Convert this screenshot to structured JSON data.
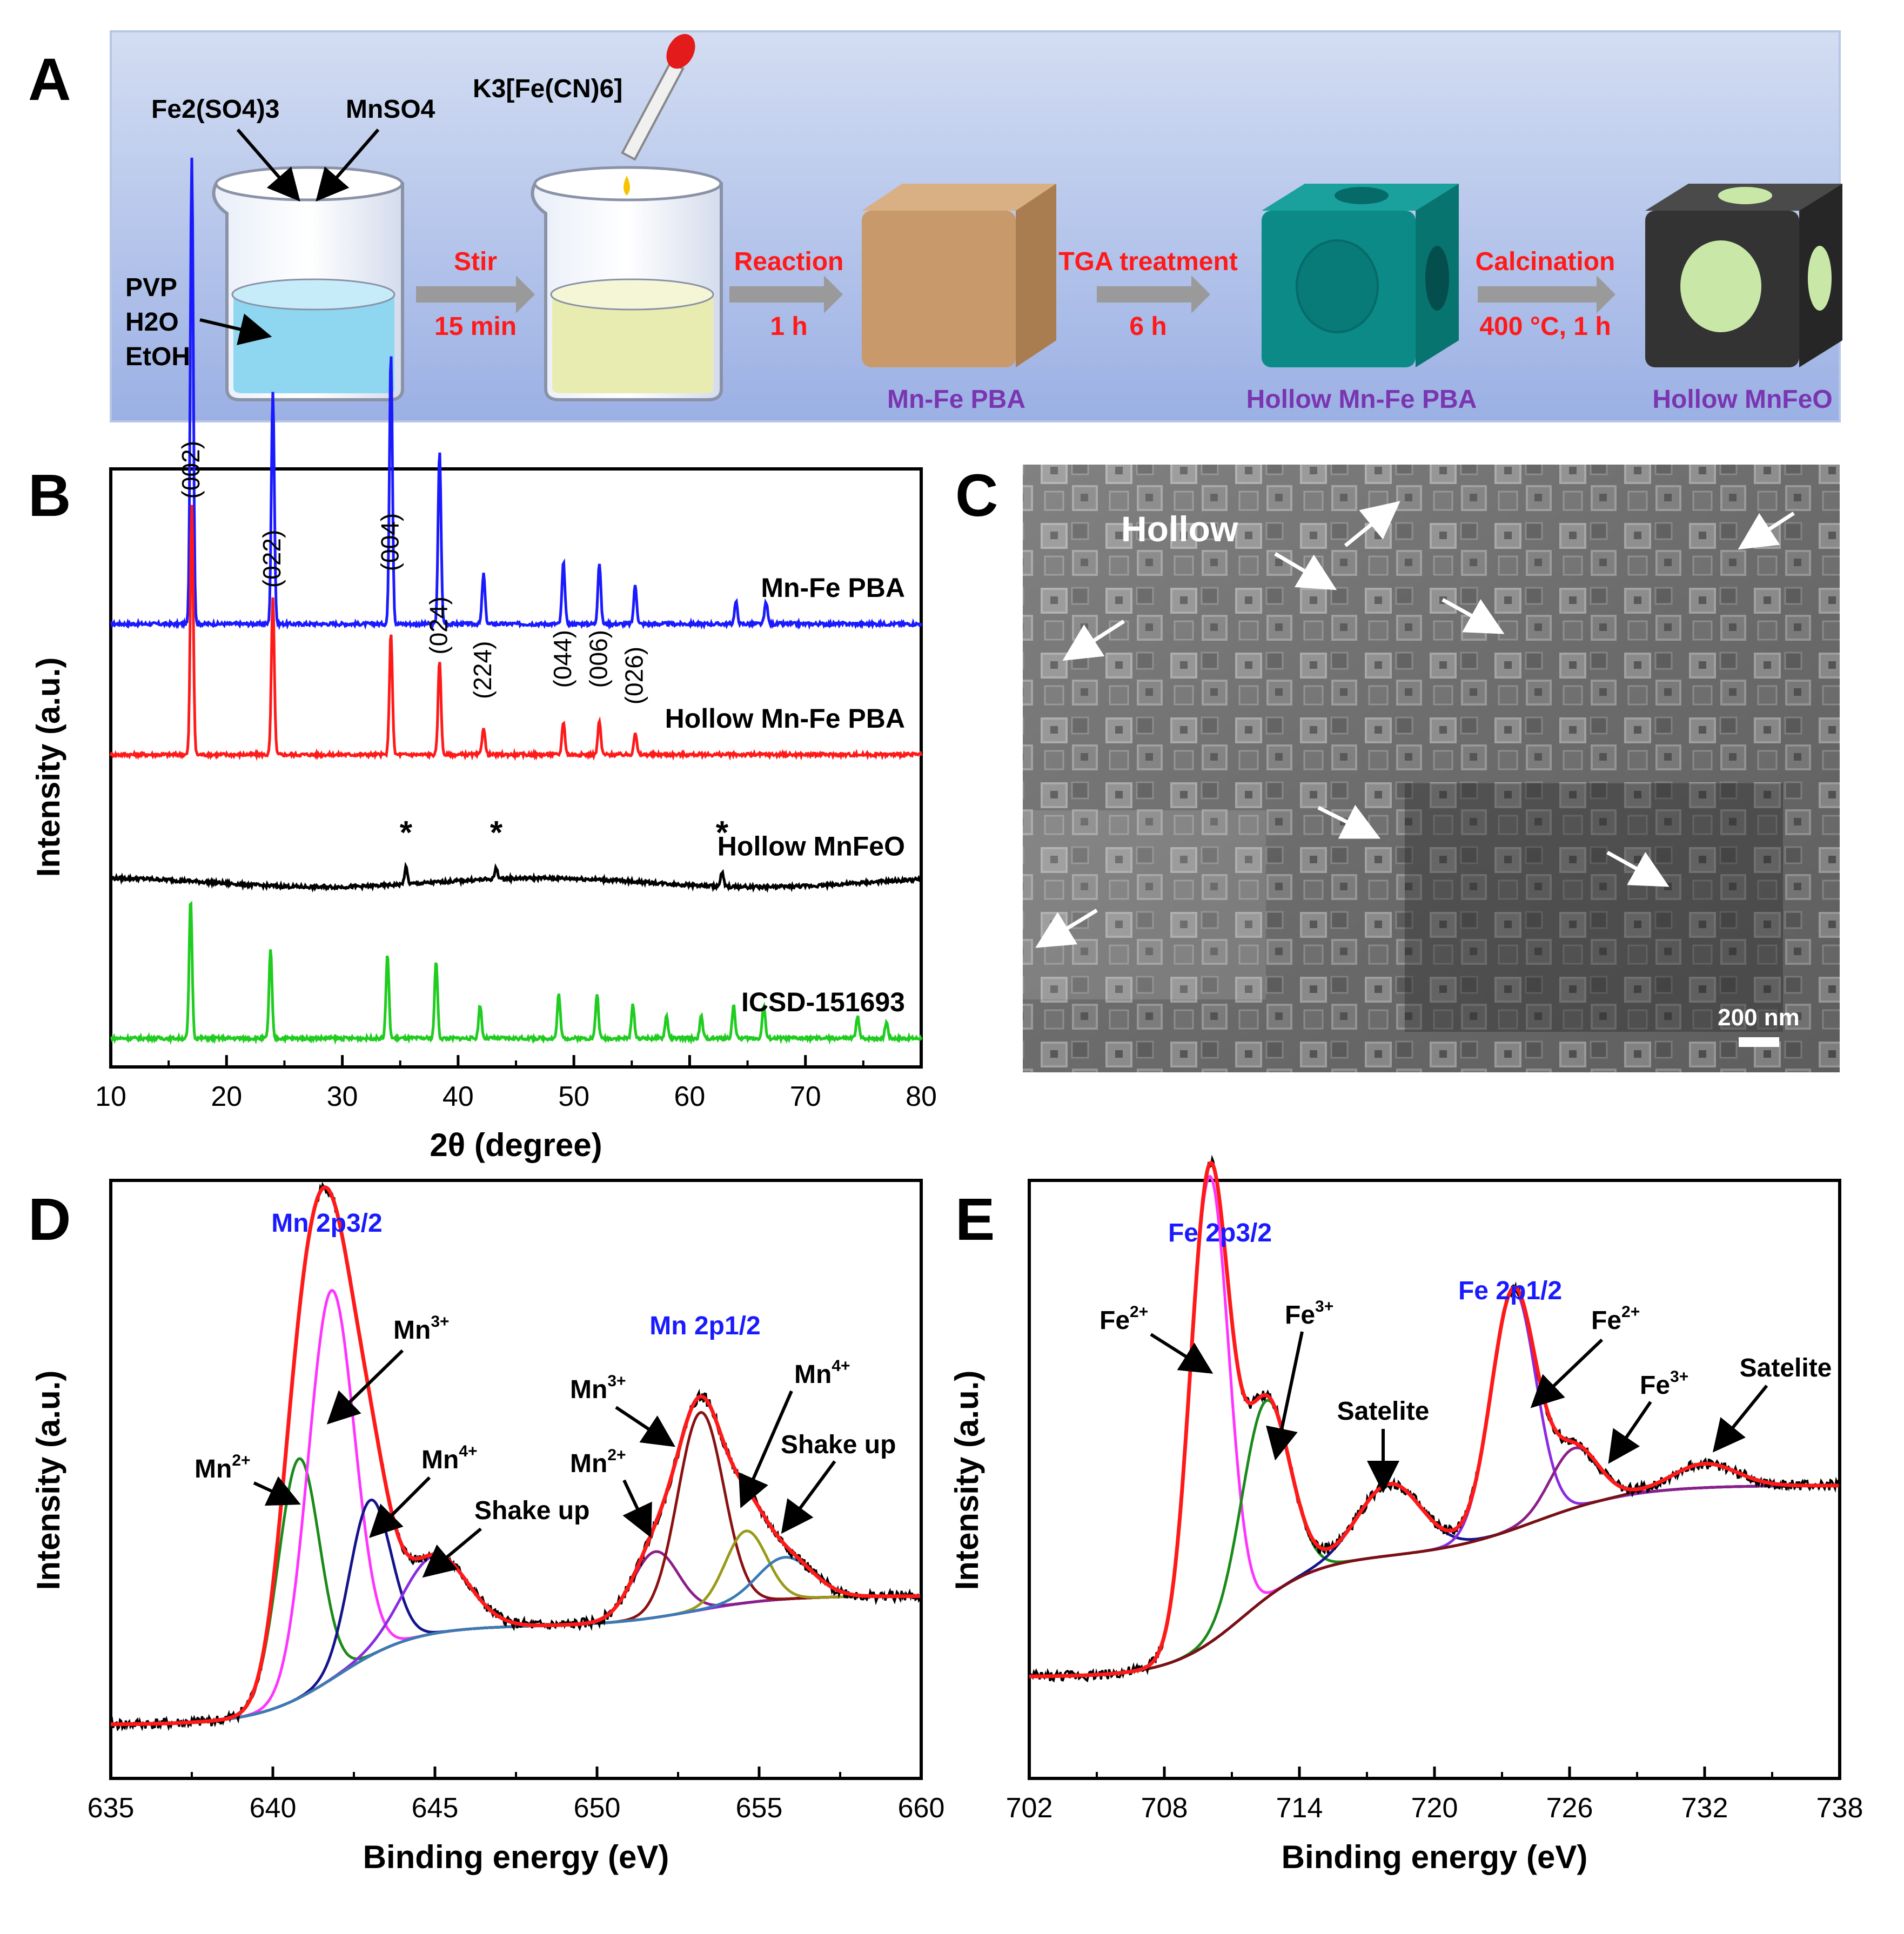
{
  "panel_letters": {
    "a": "A",
    "b": "B",
    "c": "C",
    "d": "D",
    "e": "E"
  },
  "scheme": {
    "reagents": {
      "fe2so43": "Fe2(SO4)3",
      "mnso4": "MnSO4",
      "k3fecn6": "K3[Fe(CN)6]",
      "solvents": [
        "PVP",
        "H2O",
        "EtOH"
      ]
    },
    "steps": [
      {
        "top": "Stir",
        "bottom": "15 min"
      },
      {
        "top": "Reaction",
        "bottom": "1 h"
      },
      {
        "top": "TGA treatment",
        "bottom": "6 h"
      },
      {
        "top": "Calcination",
        "bottom": "400 °C, 1 h"
      }
    ],
    "products": [
      "Mn-Fe PBA",
      "Hollow Mn-Fe PBA",
      "Hollow MnFeO"
    ],
    "colors": {
      "background_top": "#c8d6f0",
      "background_bottom": "#9fb3e6",
      "step_text": "#ff1a1a",
      "product_text": "#7a35b0",
      "arrow": "#9a9a9a",
      "cube_pba": "#c89a6a",
      "cube_hollow_pba": "#0b8a87",
      "cube_mnfeo": "#333333",
      "hole": "#c9e8a8"
    }
  },
  "sem": {
    "label": "Hollow",
    "scale_bar": "200 nm",
    "arrow_color": "#ffffff"
  },
  "chart_data": [
    {
      "panel": "B",
      "type": "line",
      "xlabel": "2θ (degree)",
      "ylabel": "Intensity (a.u.)",
      "xlim": [
        10,
        80
      ],
      "xticks": [
        10,
        20,
        30,
        40,
        50,
        60,
        70,
        80
      ],
      "series": [
        {
          "name": "Mn-Fe PBA",
          "color": "#1a1aff",
          "baseline": 0.775,
          "peaks": [
            [
              17.0,
              0.84
            ],
            [
              24.0,
              0.42
            ],
            [
              34.2,
              0.49
            ],
            [
              38.4,
              0.31
            ],
            [
              42.2,
              0.09
            ],
            [
              49.1,
              0.11
            ],
            [
              52.2,
              0.11
            ],
            [
              55.3,
              0.07
            ],
            [
              64.0,
              0.04
            ],
            [
              66.6,
              0.04
            ]
          ]
        },
        {
          "name": "Hollow Mn-Fe PBA",
          "color": "#ff1a1a",
          "baseline": 0.54,
          "peaks": [
            [
              17.0,
              0.45
            ],
            [
              24.0,
              0.28
            ],
            [
              34.2,
              0.22
            ],
            [
              38.4,
              0.17
            ],
            [
              42.2,
              0.05
            ],
            [
              49.1,
              0.06
            ],
            [
              52.2,
              0.06
            ],
            [
              55.3,
              0.04
            ]
          ]
        },
        {
          "name": "Hollow MnFeO",
          "color": "#000000",
          "baseline": 0.31,
          "peaks": [
            [
              35.5,
              0.03
            ],
            [
              43.3,
              0.02
            ],
            [
              62.8,
              0.025
            ]
          ]
        },
        {
          "name": "ICSD-151693",
          "color": "#1fcc1f",
          "baseline": 0.03,
          "peaks": [
            [
              16.9,
              0.25
            ],
            [
              23.8,
              0.16
            ],
            [
              33.9,
              0.15
            ],
            [
              38.1,
              0.14
            ],
            [
              41.9,
              0.06
            ],
            [
              48.7,
              0.08
            ],
            [
              52.0,
              0.08
            ],
            [
              55.1,
              0.06
            ],
            [
              58.0,
              0.04
            ],
            [
              61.0,
              0.04
            ],
            [
              63.8,
              0.06
            ],
            [
              66.4,
              0.06
            ],
            [
              74.5,
              0.04
            ],
            [
              77.0,
              0.03
            ]
          ]
        }
      ],
      "peak_labels": [
        {
          "text": "(002)",
          "x": 17.0,
          "y": 1.0
        },
        {
          "text": "(022)",
          "x": 24.0,
          "y": 0.84
        },
        {
          "text": "(004)",
          "x": 34.2,
          "y": 0.87
        },
        {
          "text": "(024)",
          "x": 38.4,
          "y": 0.72
        },
        {
          "text": "(224)",
          "x": 42.2,
          "y": 0.64
        },
        {
          "text": "(044)",
          "x": 49.1,
          "y": 0.66
        },
        {
          "text": "(006)",
          "x": 52.2,
          "y": 0.66
        },
        {
          "text": "(026)",
          "x": 55.3,
          "y": 0.63
        }
      ],
      "stars": [
        {
          "text": "*",
          "x": 35.5
        },
        {
          "text": "*",
          "x": 43.3
        },
        {
          "text": "*",
          "x": 62.8
        }
      ]
    },
    {
      "panel": "D",
      "type": "line",
      "title": "Mn 2p3/2",
      "title2": "Mn 2p1/2",
      "xlabel": "Binding energy (eV)",
      "ylabel": "Intensity (a.u.)",
      "xlim": [
        635,
        660
      ],
      "xticks": [
        635,
        640,
        645,
        650,
        655,
        660
      ],
      "series": [
        {
          "name": "Mn2+",
          "color": "#1a8a1a",
          "peaks": [
            [
              640.8,
              0.4,
              0.9
            ]
          ]
        },
        {
          "name": "Mn3+",
          "color": "#ff33ff",
          "peaks": [
            [
              641.8,
              0.65,
              1.0
            ]
          ]
        },
        {
          "name": "Mn4+",
          "color": "#14148a",
          "peaks": [
            [
              643.0,
              0.26,
              0.9
            ]
          ]
        },
        {
          "name": "Shake up",
          "color": "#8a2be2",
          "peaks": [
            [
              645.0,
              0.13,
              1.4
            ]
          ]
        },
        {
          "name": "Mn2+ (2p1/2)",
          "color": "#8a1f8a",
          "peaks": [
            [
              651.8,
              0.11,
              1.0
            ]
          ]
        },
        {
          "name": "Mn3+ (2p1/2)",
          "color": "#8b1010",
          "peaks": [
            [
              653.2,
              0.33,
              1.0
            ]
          ]
        },
        {
          "name": "Mn4+ (2p1/2)",
          "color": "#9a9a1a",
          "peaks": [
            [
              654.6,
              0.12,
              0.9
            ]
          ]
        },
        {
          "name": "Shake up (2p1/2)",
          "color": "#3a7ab8",
          "peaks": [
            [
              655.8,
              0.07,
              1.2
            ]
          ]
        }
      ]
    },
    {
      "panel": "E",
      "type": "line",
      "title": "Fe 2p3/2",
      "title2": "Fe 2p1/2",
      "xlabel": "Binding energy (eV)",
      "ylabel": "Intensity (a.u.)",
      "xlim": [
        702,
        738
      ],
      "xticks": [
        702,
        708,
        714,
        720,
        726,
        732,
        738
      ],
      "series": [
        {
          "name": "Fe2+",
          "color": "#ff33ff",
          "peaks": [
            [
              710.0,
              0.78,
              1.2
            ]
          ]
        },
        {
          "name": "Fe3+",
          "color": "#1a8a1a",
          "peaks": [
            [
              712.5,
              0.33,
              1.5
            ]
          ]
        },
        {
          "name": "Satelite",
          "color": "#14148a",
          "peaks": [
            [
              718.0,
              0.12,
              2.0
            ]
          ]
        },
        {
          "name": "Fe 2p1/2",
          "color": "#8a2be2",
          "peaks": [
            [
              723.5,
              0.4,
              1.4
            ]
          ]
        },
        {
          "name": "Fe3+ (2p1/2)",
          "color": "#8a1f8a",
          "peaks": [
            [
              726.2,
              0.1,
              1.5
            ]
          ]
        },
        {
          "name": "Satelite (2p1/2)",
          "color": "#7a1010",
          "peaks": [
            [
              732.0,
              0.04,
              2.0
            ]
          ]
        }
      ]
    }
  ],
  "d_labels": {
    "mn2a": "Mn",
    "mn3a": "Mn",
    "mn4a": "Mn",
    "shake1": "Shake up",
    "mn3b": "Mn",
    "mn2b": "Mn",
    "mn4b": "Mn",
    "shake2": "Shake up",
    "sup2": "2+",
    "sup3": "3+",
    "sup4": "4+"
  },
  "e_labels": {
    "fe2a": "Fe",
    "fe3a": "Fe",
    "sat1": "Satelite",
    "fe2b": "Fe",
    "fe3b": "Fe",
    "sat2": "Satelite",
    "sup2": "2+",
    "sup3": "3+"
  }
}
